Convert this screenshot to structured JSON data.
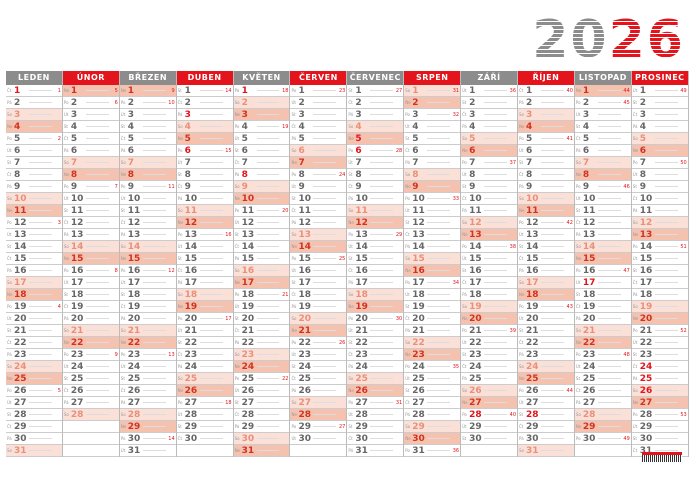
{
  "year": {
    "left": "20",
    "right": "26"
  },
  "weekday_abbr": [
    "Po",
    "Út",
    "St",
    "Čt",
    "Pá",
    "So",
    "Ne"
  ],
  "colors": {
    "gray": "#8c8c8c",
    "red": "#e3141b"
  },
  "months": [
    {
      "name": "LEDEN",
      "days": 31,
      "first_weekday": 3,
      "weeks": [
        [
          1,
          1
        ],
        [
          5,
          2
        ],
        [
          12,
          3
        ],
        [
          19,
          4
        ],
        [
          26,
          5
        ]
      ],
      "holidays": [
        1
      ]
    },
    {
      "name": "ÚNOR",
      "days": 28,
      "first_weekday": 6,
      "weeks": [
        [
          1,
          5
        ],
        [
          2,
          6
        ],
        [
          9,
          7
        ],
        [
          16,
          8
        ],
        [
          23,
          9
        ]
      ],
      "holidays": []
    },
    {
      "name": "BŘEZEN",
      "days": 31,
      "first_weekday": 6,
      "weeks": [
        [
          1,
          9
        ],
        [
          2,
          10
        ],
        [
          9,
          11
        ],
        [
          16,
          12
        ],
        [
          23,
          13
        ],
        [
          30,
          14
        ]
      ],
      "holidays": []
    },
    {
      "name": "DUBEN",
      "days": 30,
      "first_weekday": 2,
      "weeks": [
        [
          1,
          14
        ],
        [
          6,
          15
        ],
        [
          13,
          16
        ],
        [
          20,
          17
        ],
        [
          27,
          18
        ]
      ],
      "holidays": [
        3,
        6
      ]
    },
    {
      "name": "KVĚTEN",
      "days": 31,
      "first_weekday": 4,
      "weeks": [
        [
          1,
          18
        ],
        [
          4,
          19
        ],
        [
          11,
          20
        ],
        [
          18,
          21
        ],
        [
          25,
          22
        ]
      ],
      "holidays": [
        1,
        8
      ]
    },
    {
      "name": "ČERVEN",
      "days": 30,
      "first_weekday": 0,
      "weeks": [
        [
          1,
          23
        ],
        [
          8,
          24
        ],
        [
          15,
          25
        ],
        [
          22,
          26
        ],
        [
          29,
          27
        ]
      ],
      "holidays": []
    },
    {
      "name": "ČERVENEC",
      "days": 31,
      "first_weekday": 2,
      "weeks": [
        [
          1,
          27
        ],
        [
          6,
          28
        ],
        [
          13,
          29
        ],
        [
          20,
          30
        ],
        [
          27,
          31
        ]
      ],
      "holidays": [
        5,
        6
      ]
    },
    {
      "name": "SRPEN",
      "days": 31,
      "first_weekday": 5,
      "weeks": [
        [
          1,
          31
        ],
        [
          3,
          32
        ],
        [
          10,
          33
        ],
        [
          17,
          34
        ],
        [
          24,
          35
        ],
        [
          31,
          36
        ]
      ],
      "holidays": []
    },
    {
      "name": "ZÁŘÍ",
      "days": 30,
      "first_weekday": 1,
      "weeks": [
        [
          1,
          36
        ],
        [
          7,
          37
        ],
        [
          14,
          38
        ],
        [
          21,
          39
        ],
        [
          28,
          40
        ]
      ],
      "holidays": [
        28
      ]
    },
    {
      "name": "ŘÍJEN",
      "days": 31,
      "first_weekday": 3,
      "weeks": [
        [
          1,
          40
        ],
        [
          5,
          41
        ],
        [
          12,
          42
        ],
        [
          19,
          43
        ],
        [
          26,
          44
        ]
      ],
      "holidays": [
        28
      ]
    },
    {
      "name": "LISTOPAD",
      "days": 30,
      "first_weekday": 6,
      "weeks": [
        [
          1,
          44
        ],
        [
          2,
          45
        ],
        [
          9,
          46
        ],
        [
          16,
          47
        ],
        [
          23,
          48
        ],
        [
          30,
          49
        ]
      ],
      "holidays": [
        17
      ]
    },
    {
      "name": "PROSINEC",
      "days": 31,
      "first_weekday": 1,
      "weeks": [
        [
          1,
          49
        ],
        [
          7,
          50
        ],
        [
          14,
          51
        ],
        [
          21,
          52
        ],
        [
          28,
          53
        ]
      ],
      "holidays": [
        24,
        25,
        26
      ]
    }
  ]
}
